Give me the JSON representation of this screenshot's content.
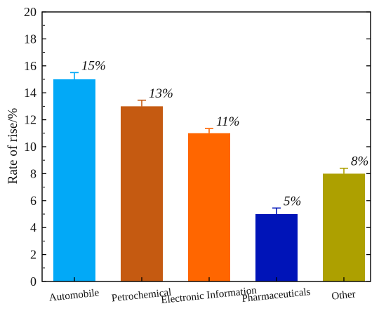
{
  "chart_data": {
    "type": "bar",
    "title": "",
    "xlabel": "",
    "ylabel": "Rate of rise/%",
    "ylim": [
      0,
      20
    ],
    "yticks": [
      0,
      2,
      4,
      6,
      8,
      10,
      12,
      14,
      16,
      18,
      20
    ],
    "grid": false,
    "legend": "none",
    "categories": [
      "Automobile",
      "Petrochemical",
      "Electronic Information",
      "Pharmaceuticals",
      "Other"
    ],
    "values": [
      15,
      13,
      11,
      5,
      8
    ],
    "errors": [
      0.5,
      0.45,
      0.35,
      0.45,
      0.4
    ],
    "data_labels": [
      "15%",
      "13%",
      "11%",
      "5%",
      "8%"
    ],
    "colors": [
      "#02A9F7",
      "#C55A11",
      "#FF6600",
      "#0014B8",
      "#ADA000"
    ]
  }
}
